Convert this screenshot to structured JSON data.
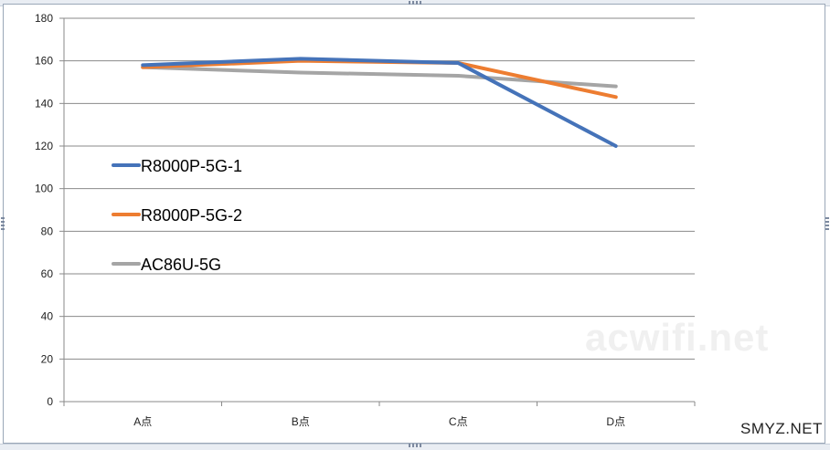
{
  "chart_data": {
    "type": "line",
    "categories": [
      "A点",
      "B点",
      "C点",
      "D点"
    ],
    "series": [
      {
        "name": "R8000P-5G-1",
        "color": "#4573b9",
        "values": [
          158,
          161,
          159,
          120
        ]
      },
      {
        "name": "R8000P-5G-2",
        "color": "#ed7d31",
        "values": [
          157,
          160,
          159,
          143
        ]
      },
      {
        "name": "AC86U-5G",
        "color": "#a5a5a5",
        "values": [
          157,
          154.5,
          153,
          148
        ]
      }
    ],
    "y_ticks": [
      "0",
      "20",
      "40",
      "60",
      "80",
      "100",
      "120",
      "140",
      "160",
      "180"
    ],
    "ylim": [
      0,
      180
    ],
    "grid": true,
    "legend_position": "left-middle",
    "title": "",
    "xlabel": "",
    "ylabel": ""
  },
  "watermark": "acwifi.net",
  "site_mark": "SMYZ.NET"
}
